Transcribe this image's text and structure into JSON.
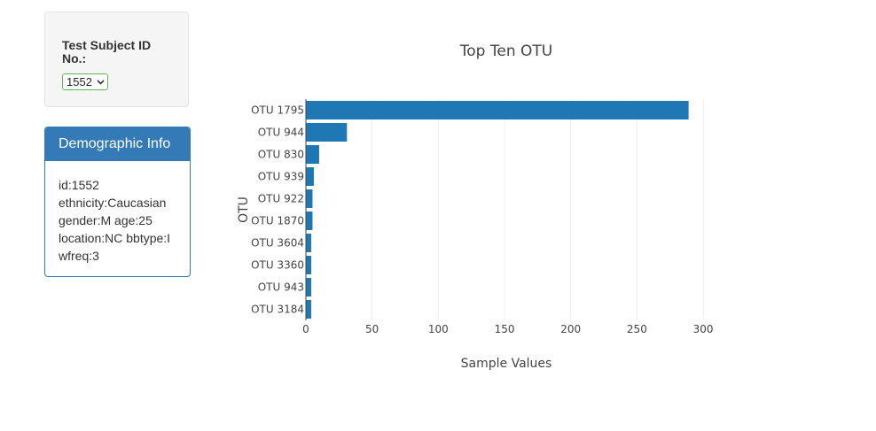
{
  "selector": {
    "label": "Test Subject ID No.:",
    "selected_value": "1552"
  },
  "demographic": {
    "title": "Demographic Info",
    "lines": [
      "id:1552",
      "ethnicity:Caucasian",
      "gender:M age:25",
      "location:NC bbtype:I",
      "wfreq:3"
    ]
  },
  "colors": {
    "bar": "#1f77b4",
    "panel_accent": "#337ab7",
    "select_border": "#5cb85c"
  },
  "chart_data": {
    "type": "bar",
    "orientation": "horizontal",
    "title": "Top Ten OTU",
    "xlabel": "Sample Values",
    "ylabel": "OTU",
    "categories": [
      "OTU 1795",
      "OTU 944",
      "OTU 830",
      "OTU 939",
      "OTU 922",
      "OTU 1870",
      "OTU 3604",
      "OTU 3360",
      "OTU 943",
      "OTU 3184"
    ],
    "values": [
      289,
      31,
      10,
      6,
      5,
      5,
      4,
      4,
      4,
      4
    ],
    "xlim": [
      0,
      310
    ],
    "xticks": [
      0,
      50,
      100,
      150,
      200,
      250,
      300
    ],
    "grid": true,
    "legend": "none"
  }
}
